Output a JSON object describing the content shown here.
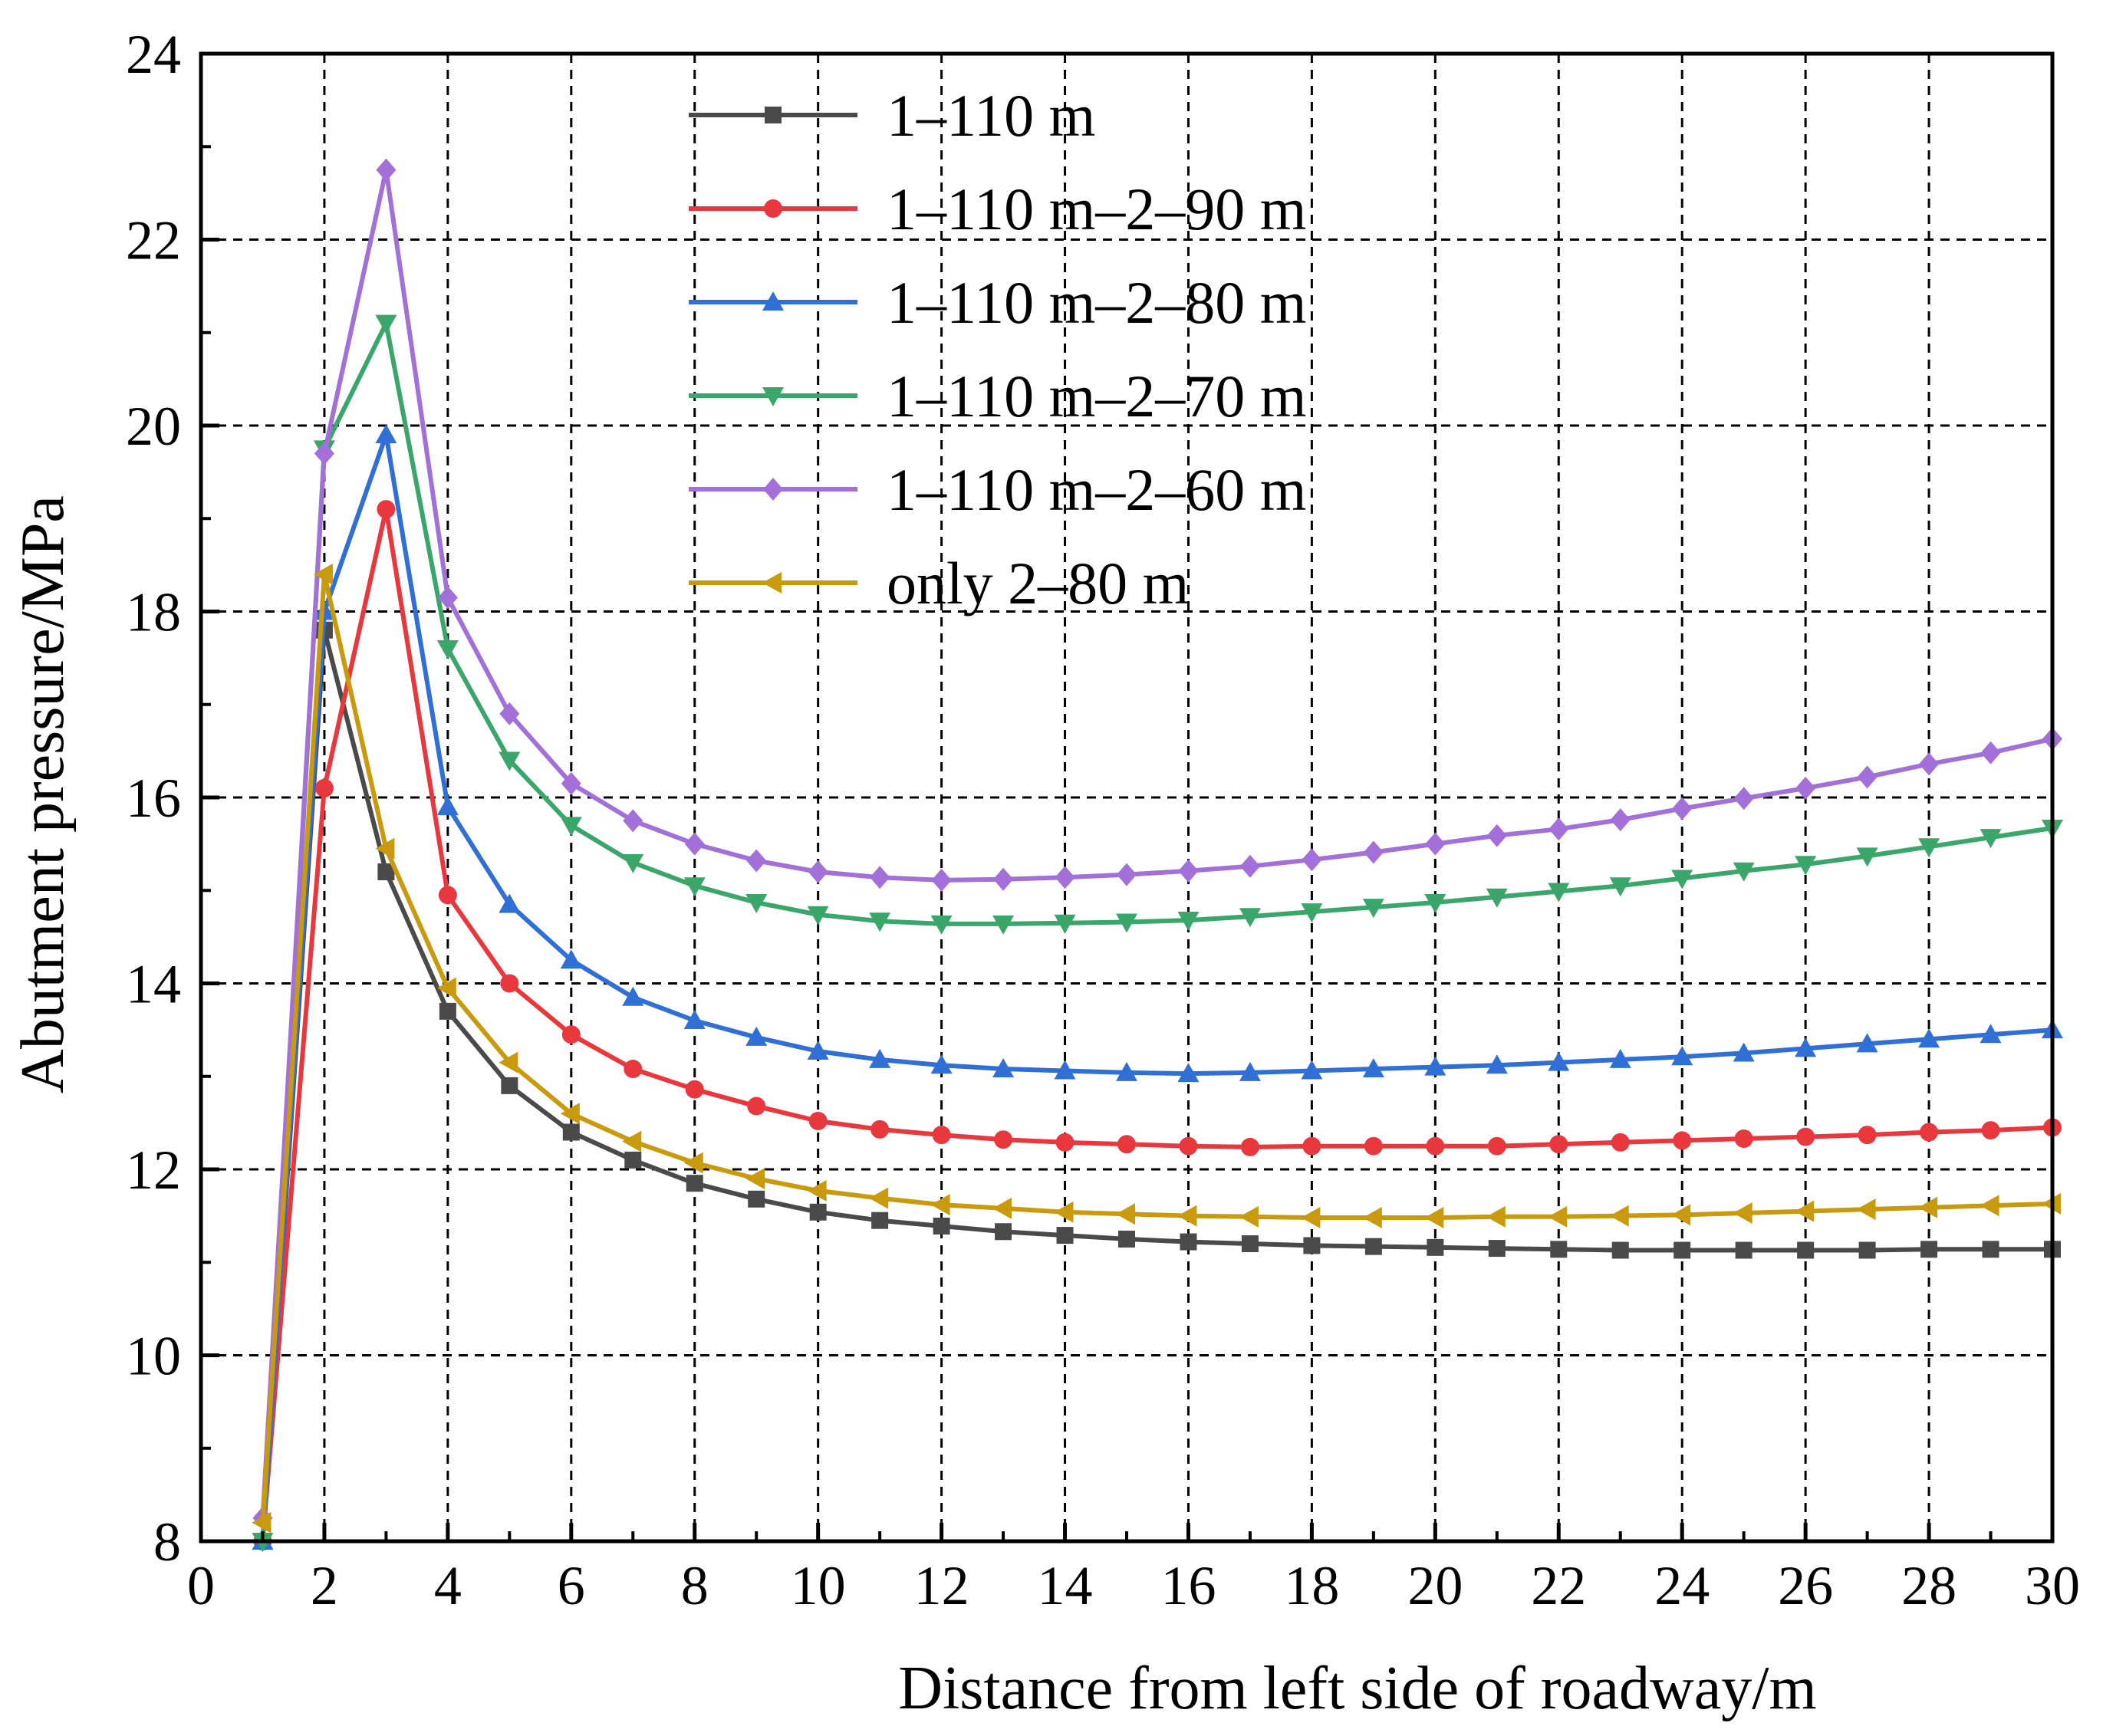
{
  "chart_data": {
    "type": "line",
    "title": "",
    "xlabel": "Distance from left side of roadway/m",
    "ylabel": "Abutment pressure/MPa",
    "xlim": [
      0,
      30
    ],
    "ylim": [
      8,
      24
    ],
    "xticks": [
      0,
      2,
      4,
      6,
      8,
      10,
      12,
      14,
      16,
      18,
      20,
      22,
      24,
      26,
      28,
      30
    ],
    "yticks": [
      8,
      10,
      12,
      14,
      16,
      18,
      20,
      22,
      24
    ],
    "grid": true,
    "legend_position": "top-center",
    "x": [
      1,
      2,
      3,
      4,
      5,
      6,
      7,
      8,
      9,
      10,
      11,
      12,
      13,
      14,
      15,
      16,
      17,
      18,
      19,
      20,
      21,
      22,
      23,
      24,
      25,
      26,
      27,
      28,
      29,
      30
    ],
    "series": [
      {
        "name": "1–110 m",
        "color": "#4a4a4a",
        "marker": "square",
        "values": [
          8.0,
          17.8,
          15.2,
          13.7,
          12.9,
          12.4,
          12.1,
          11.85,
          11.68,
          11.54,
          11.45,
          11.39,
          11.33,
          11.29,
          11.25,
          11.22,
          11.2,
          11.18,
          11.17,
          11.16,
          11.15,
          11.14,
          11.13,
          11.13,
          11.13,
          11.13,
          11.13,
          11.14,
          11.14,
          11.14
        ]
      },
      {
        "name": "1–110 m–2–90 m",
        "color": "#e8383d",
        "marker": "circle",
        "values": [
          8.0,
          16.1,
          19.1,
          14.95,
          14.0,
          13.45,
          13.08,
          12.86,
          12.68,
          12.52,
          12.43,
          12.37,
          12.32,
          12.29,
          12.27,
          12.25,
          12.24,
          12.25,
          12.25,
          12.25,
          12.25,
          12.27,
          12.29,
          12.31,
          12.33,
          12.35,
          12.37,
          12.4,
          12.42,
          12.45
        ]
      },
      {
        "name": "1–110 m–2–80 m",
        "color": "#2f6fd6",
        "marker": "triangle-up",
        "values": [
          8.0,
          18.0,
          19.9,
          15.9,
          14.85,
          14.25,
          13.85,
          13.6,
          13.42,
          13.27,
          13.18,
          13.12,
          13.08,
          13.06,
          13.04,
          13.03,
          13.04,
          13.06,
          13.08,
          13.1,
          13.12,
          13.15,
          13.18,
          13.21,
          13.25,
          13.3,
          13.35,
          13.4,
          13.45,
          13.5
        ]
      },
      {
        "name": "1–110 m–2–70 m",
        "color": "#3aa66a",
        "marker": "triangle-down",
        "values": [
          8.0,
          19.75,
          21.1,
          17.6,
          16.4,
          15.7,
          15.3,
          15.05,
          14.87,
          14.74,
          14.67,
          14.64,
          14.64,
          14.65,
          14.66,
          14.68,
          14.72,
          14.77,
          14.82,
          14.87,
          14.93,
          14.99,
          15.05,
          15.13,
          15.21,
          15.28,
          15.37,
          15.47,
          15.57,
          15.67
        ]
      },
      {
        "name": "1–110 m–2–60 m",
        "color": "#a36fd9",
        "marker": "diamond",
        "values": [
          8.25,
          19.7,
          22.75,
          18.15,
          16.9,
          16.15,
          15.75,
          15.5,
          15.32,
          15.2,
          15.14,
          15.11,
          15.12,
          15.14,
          15.17,
          15.21,
          15.26,
          15.33,
          15.41,
          15.5,
          15.59,
          15.66,
          15.76,
          15.88,
          15.99,
          16.1,
          16.22,
          16.36,
          16.48,
          16.63
        ]
      },
      {
        "name": "only 2–80 m",
        "color": "#c99a0e",
        "marker": "triangle-left",
        "values": [
          8.2,
          18.4,
          15.45,
          13.95,
          13.15,
          12.6,
          12.3,
          12.07,
          11.9,
          11.77,
          11.69,
          11.62,
          11.58,
          11.54,
          11.52,
          11.5,
          11.49,
          11.48,
          11.48,
          11.48,
          11.49,
          11.49,
          11.5,
          11.51,
          11.53,
          11.55,
          11.57,
          11.59,
          11.61,
          11.63
        ]
      }
    ]
  }
}
